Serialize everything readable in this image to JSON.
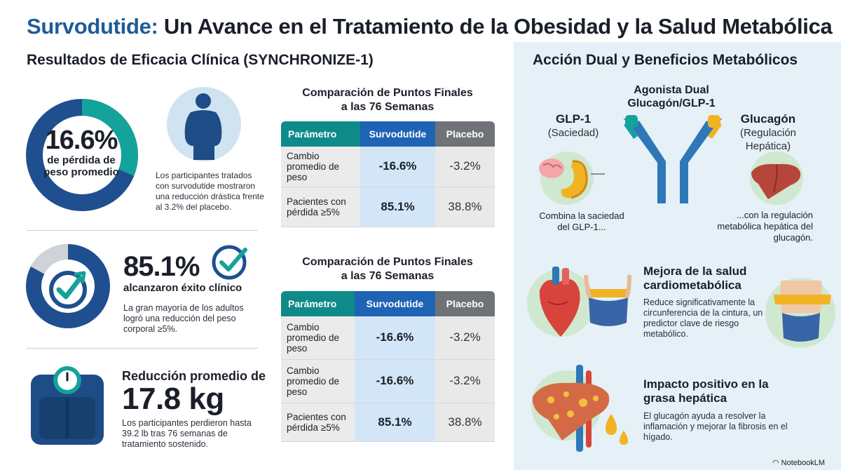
{
  "header": {
    "title_highlight": "Survodutide:",
    "title_rest": " Un Avance en el Tratamiento de la Obesidad y la Salud Metabólica"
  },
  "left": {
    "section_title": "Resultados de Eficacia Clínica (SYNCHRONIZE-1)",
    "stat1": {
      "value": "16.6%",
      "label_line1": "de pérdida de",
      "label_line2": "peso promedio",
      "description": "Los participantes tratados con survodutide mostraron una reducción drástica frente al 3.2% del placebo."
    },
    "stat2": {
      "value": "85.1%",
      "label": "alcanzaron éxito clínico",
      "description": "La gran mayoría de los adultos logró una reducción del peso corporal ≥5%."
    },
    "stat3": {
      "label": "Reducción promedio de",
      "value": "17.8 kg",
      "description": "Los participantes perdieron hasta 39.2 lb tras 76 semanas de tratamiento sostenido."
    }
  },
  "table1": {
    "title_line1": "Comparación de Puntos Finales",
    "title_line2": "a las 76 Semanas",
    "headers": [
      "Parámetro",
      "Survodutide",
      "Placebo"
    ],
    "rows": [
      [
        "Cambio promedio de peso",
        "-16.6%",
        "-3.2%"
      ],
      [
        "Pacientes con pérdida ≥5%",
        "85.1%",
        "38.8%"
      ]
    ]
  },
  "table2": {
    "title_line1": "Comparación de Puntos Finales",
    "title_line2": "a las 76 Semanas",
    "headers": [
      "Parámetro",
      "Survodutide",
      "Placebo"
    ],
    "rows": [
      [
        "Cambio promedio de peso",
        "-16.6%",
        "-3.2%"
      ],
      [
        "Cambio promedio de peso",
        "-16.6%",
        "-3.2%"
      ],
      [
        "Pacientes con pérdida ≥5%",
        "85.1%",
        "38.8%"
      ]
    ]
  },
  "right": {
    "section_title": "Acción Dual y Beneficios Metabólicos",
    "agonist_line1": "Agonista Dual",
    "agonist_line2": "Glucagón/GLP-1",
    "glp1_title": "GLP-1",
    "glp1_sub": "(Saciedad)",
    "glucagon_title": "Glucagón",
    "glucagon_sub_line1": "(Regulación",
    "glucagon_sub_line2": "Hepática)",
    "combina": "Combina la saciedad del GLP-1...",
    "con_la": "...con la regulación metabólica hepática del glucagón.",
    "benefit1_title": "Mejora de la salud cardiometabólica",
    "benefit1_desc": "Reduce significativamente la circunferencia de la cintura, un predictor clave de riesgo metabólico.",
    "benefit2_title": "Impacto positivo en la grasa hepática",
    "benefit2_desc": "El glucagón ayuda a resolver la inflamación y mejorar la fibrosis en el hígado."
  },
  "footer": {
    "brand": "NotebookLM"
  },
  "colors": {
    "title_blue": "#1f5c99",
    "ring_dark": "#1f4f8f",
    "ring_teal": "#13a39b",
    "surv_blue": "#1f63b5",
    "param_teal": "#0f8a8a",
    "placebo_gray": "#6f7378",
    "right_panel": "#e6f0f7"
  }
}
